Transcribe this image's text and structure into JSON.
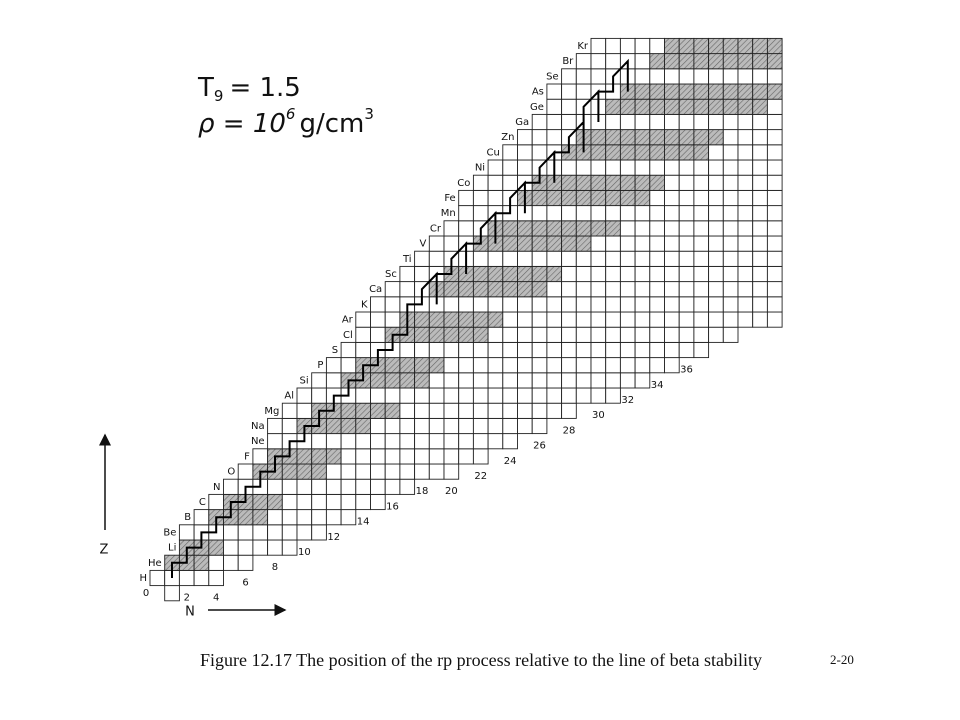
{
  "conditions": {
    "temperature_symbol": "T",
    "temperature_subscript": "9",
    "temperature_value": "= 1.5",
    "density_text": "ρ = 10",
    "density_exponent": "6",
    "density_unit": "g/cm",
    "density_unit_exponent": "3"
  },
  "elements": [
    "H",
    "He",
    "Li",
    "Be",
    "B",
    "C",
    "N",
    "O",
    "F",
    "Ne",
    "Na",
    "Mg",
    "Al",
    "Si",
    "P",
    "S",
    "Cl",
    "Ar",
    "K",
    "Ca",
    "Sc",
    "Ti",
    "V",
    "Cr",
    "Mn",
    "Fe",
    "Co",
    "Ni",
    "Cu",
    "Zn",
    "Ga",
    "Ge",
    "As",
    "Se",
    "Br",
    "Kr"
  ],
  "neutron_labels": [
    "0",
    "2",
    "4",
    "6",
    "8",
    "10",
    "12",
    "14",
    "16",
    "18",
    "20",
    "22",
    "24",
    "26",
    "28",
    "30",
    "32",
    "34",
    "36"
  ],
  "axis_labels": {
    "z": "Z",
    "n": "N"
  },
  "caption": "Figure 12.17  The position of the rp process relative to the line of beta stability",
  "page_number": "2-20"
}
